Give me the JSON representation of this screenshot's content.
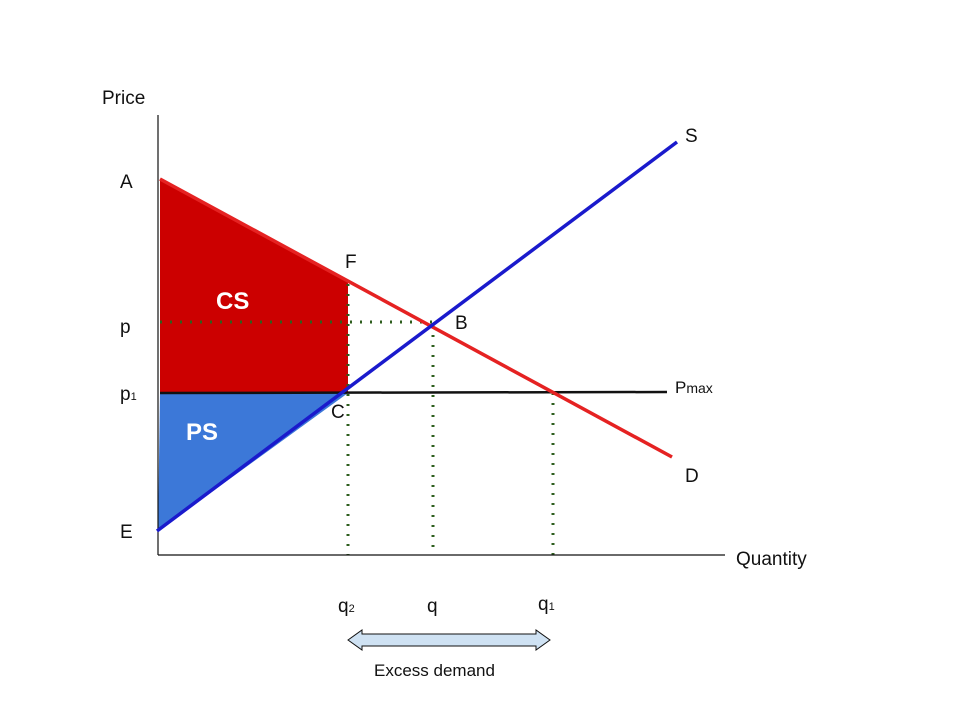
{
  "axes": {
    "y_label": "Price",
    "x_label": "Quantity"
  },
  "price_labels": {
    "a": "A",
    "p": "p",
    "p1_base": "p",
    "p1_sub": "1",
    "e": "E"
  },
  "quantity_labels": {
    "q2_base": "q",
    "q2_sub": "2",
    "q": "q",
    "q1_base": "q",
    "q1_sub": "1"
  },
  "points": {
    "f": "F",
    "b": "B",
    "c": "C"
  },
  "curves": {
    "supply": "S",
    "demand": "D",
    "pmax_base": "P",
    "pmax_sub": "max"
  },
  "areas": {
    "consumer_surplus": "CS",
    "producer_surplus": "PS"
  },
  "annotation": {
    "excess_demand": "Excess demand"
  },
  "colors": {
    "supply": "#1a1acc",
    "demand": "#e52222",
    "consumer_surplus_fill": "#cc0000",
    "producer_surplus_fill": "#3c78d8",
    "guide_lines": "#2e5e1e",
    "arrow_fill": "#cfe2f3"
  }
}
